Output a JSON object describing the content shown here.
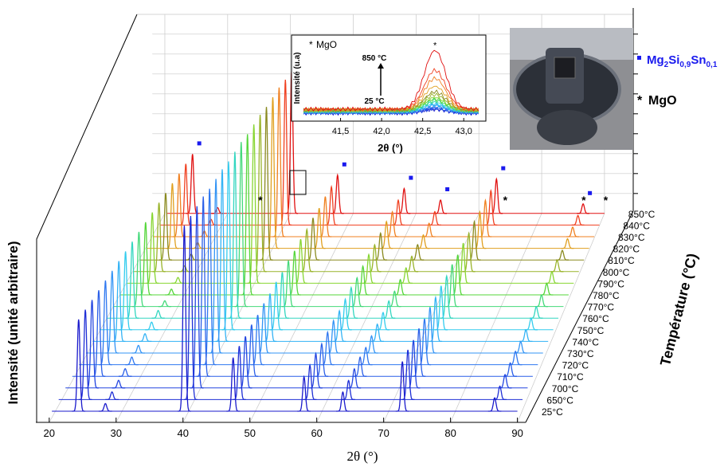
{
  "chart_data": {
    "type": "waterfall",
    "xlabel": "2θ (°)",
    "ylabel": "Intensité (unité arbitraire)",
    "zlabel": "Température (°C)",
    "xlim": [
      18,
      91
    ],
    "xticks": [
      20,
      30,
      40,
      50,
      60,
      70,
      80,
      90
    ],
    "ylim": [
      0,
      100
    ],
    "x": [
      24.4,
      28.4,
      40.2,
      47.5,
      58.1,
      63.9,
      72.8,
      86.6
    ],
    "series": [
      {
        "name": "25°C",
        "color": "#1a1acc",
        "values": [
          48,
          4,
          97,
          28,
          18,
          10,
          26,
          7
        ]
      },
      {
        "name": "650°C",
        "color": "#1f2fd6",
        "values": [
          47,
          4,
          96,
          28,
          18,
          10,
          26,
          7
        ]
      },
      {
        "name": "700°C",
        "color": "#2446e0",
        "values": [
          46,
          4,
          95,
          27,
          18,
          10,
          25,
          7
        ]
      },
      {
        "name": "710°C",
        "color": "#2a5fe8",
        "values": [
          45,
          4,
          94,
          27,
          17,
          10,
          25,
          7
        ]
      },
      {
        "name": "720°C",
        "color": "#2f78f0",
        "values": [
          44,
          4,
          92,
          26,
          17,
          9,
          24,
          7
        ]
      },
      {
        "name": "730°C",
        "color": "#3394f5",
        "values": [
          43,
          4,
          91,
          26,
          17,
          9,
          24,
          6
        ]
      },
      {
        "name": "740°C",
        "color": "#33b3f5",
        "values": [
          42,
          4,
          90,
          25,
          16,
          9,
          23,
          6
        ]
      },
      {
        "name": "750°C",
        "color": "#33ccee",
        "values": [
          41,
          4,
          88,
          25,
          16,
          9,
          23,
          6
        ]
      },
      {
        "name": "760°C",
        "color": "#33d6c0",
        "values": [
          40,
          4,
          87,
          24,
          16,
          9,
          22,
          6
        ]
      },
      {
        "name": "770°C",
        "color": "#44d97a",
        "values": [
          39,
          3,
          86,
          24,
          15,
          8,
          22,
          6
        ]
      },
      {
        "name": "780°C",
        "color": "#55d63a",
        "values": [
          38,
          3,
          84,
          23,
          15,
          8,
          21,
          6
        ]
      },
      {
        "name": "790°C",
        "color": "#88d633",
        "values": [
          37,
          3,
          83,
          23,
          15,
          8,
          21,
          6
        ]
      },
      {
        "name": "800°C",
        "color": "#99b32a",
        "values": [
          36,
          3,
          82,
          22,
          14,
          8,
          20,
          6
        ]
      },
      {
        "name": "810°C",
        "color": "#8a8a1f",
        "values": [
          35,
          3,
          80,
          22,
          14,
          8,
          20,
          5
        ]
      },
      {
        "name": "820°C",
        "color": "#e0a020",
        "values": [
          34,
          3,
          79,
          21,
          14,
          7,
          19,
          5
        ]
      },
      {
        "name": "830°C",
        "color": "#f08020",
        "values": [
          33,
          3,
          78,
          21,
          13,
          7,
          19,
          5
        ]
      },
      {
        "name": "840°C",
        "color": "#f04020",
        "values": [
          32,
          3,
          76,
          20,
          13,
          7,
          18,
          5
        ]
      },
      {
        "name": "850°C",
        "color": "#e01010",
        "values": [
          31,
          3,
          75,
          20,
          13,
          7,
          18,
          5
        ]
      }
    ],
    "legend_formula": [
      "Mg",
      "2",
      "Si",
      "0,9",
      "Sn",
      "0,1"
    ],
    "legend_formula_color": "#1a1aee",
    "mgo_symbol": "*",
    "mgo_label": "MgO",
    "inset": {
      "legend": "MgO",
      "ylabel": "Intensité (u.a)",
      "xlabel": "2θ (°)",
      "top_label": "850 °C",
      "bottom_label": "25 °C",
      "xlim": [
        41.0,
        43.25
      ],
      "xticks": [
        {
          "value": 41.5,
          "label": "41,5"
        },
        {
          "value": 42.0,
          "label": "42,0"
        },
        {
          "value": 42.5,
          "label": "42,5"
        },
        {
          "value": 43.0,
          "label": "43,0"
        }
      ],
      "ylim": [
        0,
        55
      ],
      "peak_x": 42.65,
      "peak_heights": [
        3,
        3,
        3,
        4,
        4,
        5,
        5,
        6,
        7,
        8,
        9,
        10,
        12,
        14,
        18,
        24,
        30,
        45
      ]
    }
  }
}
